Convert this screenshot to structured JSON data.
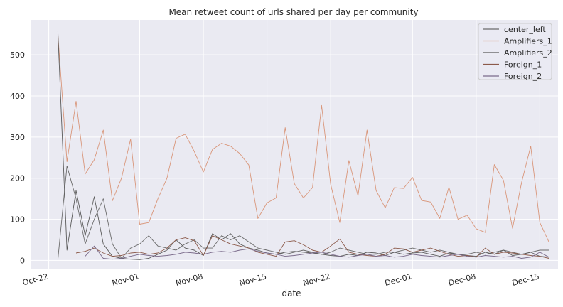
{
  "chart_data": {
    "type": "line",
    "title": "Mean retweet count of urls shared per day per community",
    "xlabel": "date",
    "ylabel": "",
    "x_start": "2016-10-20",
    "x_end": "2016-12-17",
    "ylim": [
      -20,
      585
    ],
    "y_ticks": [
      0,
      100,
      200,
      300,
      400,
      500
    ],
    "x_ticks": [
      {
        "date": "2016-10-22",
        "label": "Oct-22"
      },
      {
        "date": "2016-11-01",
        "label": "Nov-01"
      },
      {
        "date": "2016-11-08",
        "label": "Nov-08"
      },
      {
        "date": "2016-11-15",
        "label": "Nov-15"
      },
      {
        "date": "2016-11-22",
        "label": "Nov-22"
      },
      {
        "date": "2016-12-01",
        "label": "Dec-01"
      },
      {
        "date": "2016-12-08",
        "label": "Dec-08"
      },
      {
        "date": "2016-12-15",
        "label": "Dec-15"
      }
    ],
    "grid": true,
    "legend_position": "top-right",
    "colors": {
      "background": "#eaeaf2",
      "grid": "#ffffff",
      "text": "#262626"
    },
    "series": [
      {
        "name": "center_left",
        "color": "#6b6b6b",
        "start_date": "2016-10-23",
        "values": [
          2,
          230,
          150,
          40,
          100,
          150,
          40,
          5,
          30,
          40,
          60,
          35,
          30,
          25,
          40,
          50,
          30,
          30,
          60,
          50,
          60,
          45,
          30,
          25,
          20,
          15,
          20,
          25,
          20,
          15,
          20,
          30,
          25,
          20,
          15,
          15,
          20,
          20,
          25,
          30,
          25,
          20,
          25,
          20,
          15,
          15,
          20,
          15,
          20,
          25,
          20,
          15,
          20,
          25,
          25
        ]
      },
      {
        "name": "Amplifiers_1",
        "color": "#d9967a",
        "start_date": "2016-10-23",
        "values": [
          550,
          240,
          387,
          210,
          245,
          317,
          145,
          200,
          295,
          88,
          92,
          150,
          200,
          297,
          307,
          265,
          215,
          270,
          285,
          278,
          260,
          232,
          102,
          140,
          152,
          323,
          187,
          152,
          177,
          377,
          185,
          92,
          243,
          157,
          317,
          170,
          128,
          177,
          175,
          202,
          146,
          142,
          102,
          178,
          100,
          110,
          77,
          68,
          233,
          195,
          78,
          190,
          278,
          92,
          45
        ]
      },
      {
        "name": "Amplifiers_2",
        "color": "#5a5a5a",
        "start_date": "2016-10-23",
        "values": [
          558,
          25,
          170,
          60,
          155,
          40,
          10,
          5,
          3,
          2,
          5,
          15,
          25,
          50,
          30,
          25,
          12,
          65,
          50,
          65,
          40,
          30,
          25,
          18,
          15,
          20,
          22,
          20,
          18,
          15,
          12,
          10,
          15,
          12,
          20,
          18,
          12,
          20,
          15,
          18,
          20,
          15,
          10,
          18,
          15,
          12,
          10,
          20,
          15,
          25,
          12,
          15,
          20,
          10,
          8
        ]
      },
      {
        "name": "Foreign_1",
        "color": "#8c5a4a",
        "start_date": "2016-10-25",
        "values": [
          18,
          22,
          30,
          18,
          10,
          12,
          18,
          20,
          15,
          18,
          30,
          50,
          55,
          48,
          12,
          60,
          50,
          40,
          35,
          30,
          20,
          15,
          10,
          45,
          48,
          38,
          25,
          20,
          35,
          52,
          20,
          15,
          12,
          10,
          15,
          30,
          28,
          20,
          25,
          30,
          22,
          15,
          10,
          12,
          8,
          30,
          15,
          20,
          18,
          15,
          12,
          10,
          5
        ]
      },
      {
        "name": "Foreign_2",
        "color": "#7a6a8a",
        "start_date": "2016-10-26",
        "values": [
          10,
          35,
          5,
          3,
          5,
          10,
          15,
          12,
          10,
          12,
          15,
          20,
          18,
          15,
          20,
          22,
          20,
          25,
          28,
          22,
          18,
          15,
          10,
          12,
          15,
          18,
          20,
          15,
          10,
          8,
          12,
          15,
          10,
          12,
          8,
          10,
          15,
          12,
          10,
          8,
          12,
          15,
          10,
          8,
          12,
          10,
          8,
          10,
          5,
          8,
          20,
          8
        ]
      }
    ]
  }
}
